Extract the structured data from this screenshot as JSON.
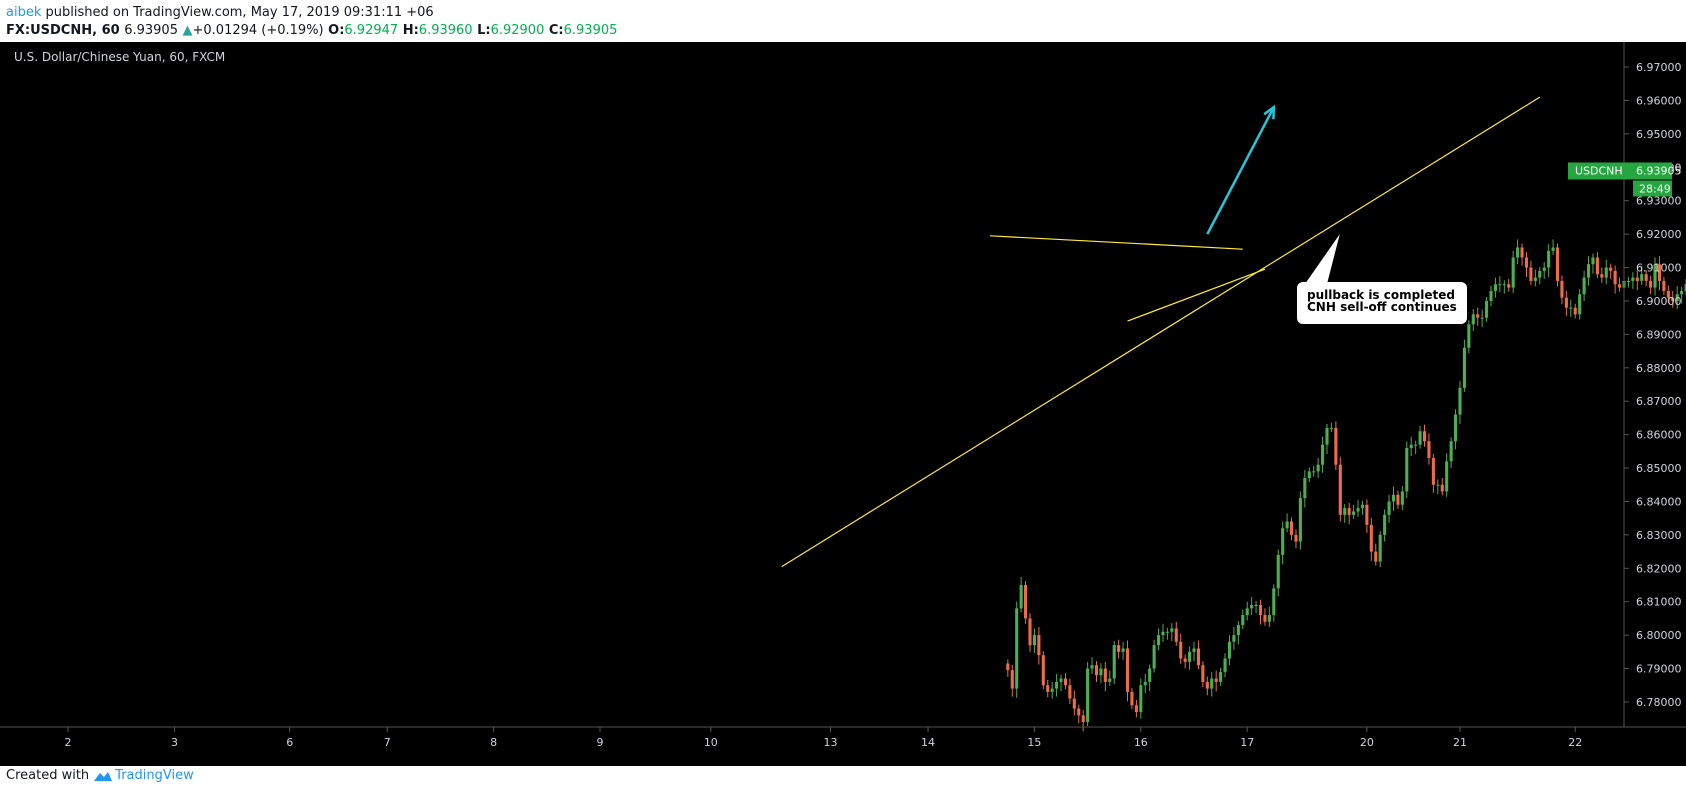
{
  "header": {
    "author": "aibek",
    "published_text": "published on TradingView.com, May 17, 2019 09:31:11 +06",
    "symbol": "FX:USDCNH, 60",
    "last_price": "6.93905",
    "change": "+0.01294 (+0.19%)",
    "open_label": "O:",
    "open": "6.92947",
    "high_label": "H:",
    "high": "6.93960",
    "low_label": "L:",
    "low": "6.92900",
    "close_label": "C:",
    "close": "6.93905"
  },
  "footer": {
    "created_with": "Created with",
    "brand": "TradingView"
  },
  "colors": {
    "background": "#000000",
    "up_candle": "#4caf50",
    "down_candle": "#ef6c4a",
    "trendline": "#ffeb3b",
    "arrow": "#26c6da",
    "price_badge": "#26a641",
    "axis_text": "#d1d4dc"
  },
  "icons": [
    "triangle-up-icon",
    "tradingview-logo-icon"
  ],
  "chart_data": {
    "type": "candlestick",
    "title": "U.S. Dollar/Chinese Yuan, 60, FXCM",
    "price_badge": {
      "symbol": "USDCNH",
      "price": "6.93905",
      "countdown": "28:49"
    },
    "ylim": [
      6.7725,
      6.9775
    ],
    "y_ticks": [
      "6.78000",
      "6.79000",
      "6.80000",
      "6.81000",
      "6.82000",
      "6.83000",
      "6.84000",
      "6.85000",
      "6.86000",
      "6.87000",
      "6.88000",
      "6.89000",
      "6.90000",
      "6.91000",
      "6.92000",
      "6.93000",
      "6.94000",
      "6.95000",
      "6.96000",
      "6.97000"
    ],
    "x_ticks": [
      {
        "label": "2",
        "bar": -212
      },
      {
        "label": "3",
        "bar": -188
      },
      {
        "label": "6",
        "bar": -162
      },
      {
        "label": "7",
        "bar": -140
      },
      {
        "label": "8",
        "bar": -116
      },
      {
        "label": "9",
        "bar": -92
      },
      {
        "label": "10",
        "bar": -67
      },
      {
        "label": "13",
        "bar": -40
      },
      {
        "label": "14",
        "bar": -18
      },
      {
        "label": "15",
        "bar": 6
      },
      {
        "label": "16",
        "bar": 30
      },
      {
        "label": "17",
        "bar": 54
      },
      {
        "label": "20",
        "bar": 81
      },
      {
        "label": "21",
        "bar": 102
      },
      {
        "label": "22",
        "bar": 128
      }
    ],
    "xlim_bars": [
      -226,
      139
    ],
    "closes": [
      6.7895,
      6.784,
      6.808,
      6.815,
      6.805,
      6.797,
      6.8,
      6.794,
      6.785,
      6.783,
      6.784,
      6.786,
      6.787,
      6.785,
      6.781,
      6.778,
      6.776,
      6.774,
      6.79,
      6.791,
      6.788,
      6.79,
      6.786,
      6.787,
      6.797,
      6.795,
      6.796,
      6.783,
      6.779,
      6.777,
      6.785,
      6.786,
      6.79,
      6.797,
      6.8,
      6.801,
      6.801,
      6.802,
      6.798,
      6.793,
      6.792,
      6.795,
      6.796,
      6.791,
      6.786,
      6.784,
      6.787,
      6.786,
      6.789,
      6.793,
      6.798,
      6.8,
      6.803,
      6.806,
      6.808,
      6.809,
      6.809,
      6.806,
      6.804,
      6.806,
      6.814,
      6.824,
      6.832,
      6.834,
      6.83,
      6.828,
      6.841,
      6.847,
      6.849,
      6.849,
      6.851,
      6.857,
      6.862,
      6.862,
      6.851,
      6.836,
      6.838,
      6.836,
      6.837,
      6.838,
      6.839,
      6.833,
      6.825,
      6.822,
      6.83,
      6.836,
      6.84,
      6.842,
      6.839,
      6.843,
      6.856,
      6.857,
      6.857,
      6.861,
      6.858,
      6.853,
      6.845,
      6.845,
      6.843,
      6.852,
      6.858,
      6.866,
      6.874,
      6.886,
      6.893,
      6.896,
      6.895,
      6.895,
      6.9,
      6.903,
      6.905,
      6.905,
      6.905,
      6.904,
      6.913,
      6.916,
      6.913,
      6.91,
      6.906,
      6.907,
      6.909,
      6.91,
      6.915,
      6.916,
      6.906,
      6.901,
      6.898,
      6.898,
      6.896,
      6.902,
      6.907,
      6.911,
      6.913,
      6.908,
      6.907,
      6.91,
      6.909,
      6.905,
      6.904,
      6.906,
      6.906,
      6.907,
      6.906,
      6.908,
      6.906,
      6.904,
      6.911,
      6.906,
      6.903,
      6.901,
      6.9,
      6.902,
      6.903,
      6.905,
      6.917,
      6.916,
      6.915,
      6.916,
      6.914,
      6.907,
      6.906,
      6.906,
      6.905,
      6.904,
      6.904,
      6.905,
      6.906,
      6.908,
      6.91,
      6.911,
      6.913,
      6.913,
      6.913,
      6.912,
      6.909,
      6.907,
      6.908,
      6.911,
      6.912,
      6.913,
      6.915,
      6.917,
      6.918,
      6.929,
      6.93,
      6.931,
      6.929,
      6.927,
      6.928,
      6.931,
      6.932,
      6.924,
      6.923,
      6.929,
      6.939
    ],
    "annotations": {
      "callout_text": [
        "pullback is completed",
        "CNH sell-off continues"
      ],
      "trendlines": [
        {
          "from": {
            "bar": -51,
            "price": 6.8205
          },
          "to": {
            "bar": 120,
            "price": 6.961
          }
        },
        {
          "from": {
            "bar": -4,
            "price": 6.9195
          },
          "to": {
            "bar": 53,
            "price": 6.9155
          }
        },
        {
          "from": {
            "bar": 27,
            "price": 6.894
          },
          "to": {
            "bar": 58,
            "price": 6.9095
          }
        }
      ],
      "arrow": {
        "from": {
          "bar": 45,
          "price": 6.92
        },
        "to": {
          "bar": 60,
          "price": 6.958
        }
      }
    }
  }
}
